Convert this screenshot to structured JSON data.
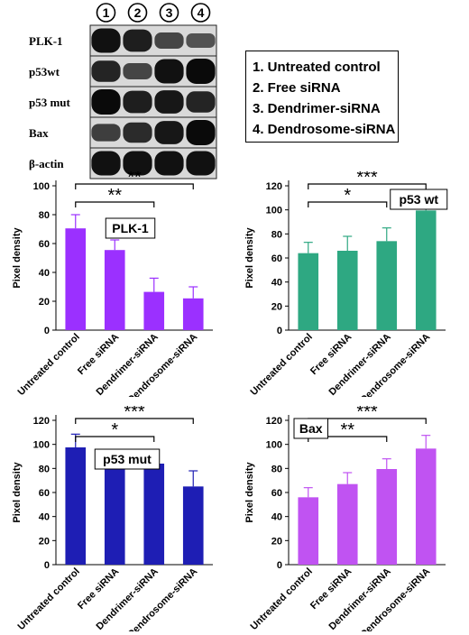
{
  "blot": {
    "lanes": [
      "1",
      "2",
      "3",
      "4"
    ],
    "rows": [
      {
        "label": "PLK-1",
        "intensities": [
          0.95,
          0.85,
          0.55,
          0.45
        ]
      },
      {
        "label": "p53wt",
        "intensities": [
          0.8,
          0.55,
          0.95,
          1.0
        ]
      },
      {
        "label": "p53 mut",
        "intensities": [
          1.0,
          0.85,
          0.9,
          0.8
        ]
      },
      {
        "label": "Bax",
        "intensities": [
          0.6,
          0.75,
          0.9,
          1.0
        ]
      },
      {
        "label": "β-actin",
        "intensities": [
          0.95,
          0.95,
          0.95,
          0.95
        ]
      }
    ]
  },
  "legend": [
    "1. Untreated control",
    "2. Free siRNA",
    "3. Dendrimer-siRNA",
    "4. Dendrosome-siRNA"
  ],
  "chart_data": [
    {
      "type": "bar",
      "title": "PLK-1",
      "ylabel": "Pixel density",
      "xlabel": "",
      "categories": [
        "Untreated control",
        "Free siRNA",
        "Dendrimer-siRNA",
        "Dendrosome-siRNA"
      ],
      "values": [
        70.5,
        55.5,
        26.5,
        22
      ],
      "errors": [
        9.5,
        7,
        9.5,
        8
      ],
      "ylim": [
        0,
        100
      ],
      "yticks": [
        0,
        20,
        40,
        60,
        80,
        100
      ],
      "color": "#9b30ff",
      "significance": [
        {
          "from": 0,
          "to": 2,
          "label": "**"
        },
        {
          "from": 0,
          "to": 3,
          "label": "**"
        }
      ]
    },
    {
      "type": "bar",
      "title": "p53 wt",
      "ylabel": "Pixel density",
      "xlabel": "",
      "categories": [
        "Untreated control",
        "Free siRNA",
        "Dendrimer-siRNA",
        "Dendrosome-siRNA"
      ],
      "values": [
        64,
        66,
        74,
        99.5
      ],
      "errors": [
        9,
        12,
        11,
        9.5
      ],
      "ylim": [
        0,
        120
      ],
      "yticks": [
        0,
        20,
        40,
        60,
        80,
        100,
        120
      ],
      "color": "#2ea882",
      "significance": [
        {
          "from": 0,
          "to": 2,
          "label": "*"
        },
        {
          "from": 0,
          "to": 3,
          "label": "***"
        }
      ]
    },
    {
      "type": "bar",
      "title": "p53 mut",
      "ylabel": "Pixel density",
      "xlabel": "",
      "categories": [
        "Untreated control",
        "Free siRNA",
        "Dendrimer-siRNA",
        "Dendrosome-siRNA"
      ],
      "values": [
        97.5,
        82,
        84,
        65
      ],
      "errors": [
        11,
        9.5,
        10,
        13
      ],
      "ylim": [
        0,
        120
      ],
      "yticks": [
        0,
        20,
        40,
        60,
        80,
        100,
        120
      ],
      "color": "#1e1eb4",
      "significance": [
        {
          "from": 0,
          "to": 2,
          "label": "*"
        },
        {
          "from": 0,
          "to": 3,
          "label": "***"
        }
      ]
    },
    {
      "type": "bar",
      "title": "Bax",
      "ylabel": "Pixel density",
      "xlabel": "",
      "categories": [
        "Untreated control",
        "Free siRNA",
        "Dendrimer-siRNA",
        "Dendrosome-siRNA"
      ],
      "values": [
        56,
        67,
        79.5,
        96.5
      ],
      "errors": [
        8,
        9.5,
        8.5,
        11
      ],
      "ylim": [
        0,
        120
      ],
      "yticks": [
        0,
        20,
        40,
        60,
        80,
        100,
        120
      ],
      "color": "#c053f2",
      "significance": [
        {
          "from": 0,
          "to": 2,
          "label": "**"
        },
        {
          "from": 0,
          "to": 3,
          "label": "***"
        }
      ]
    }
  ]
}
